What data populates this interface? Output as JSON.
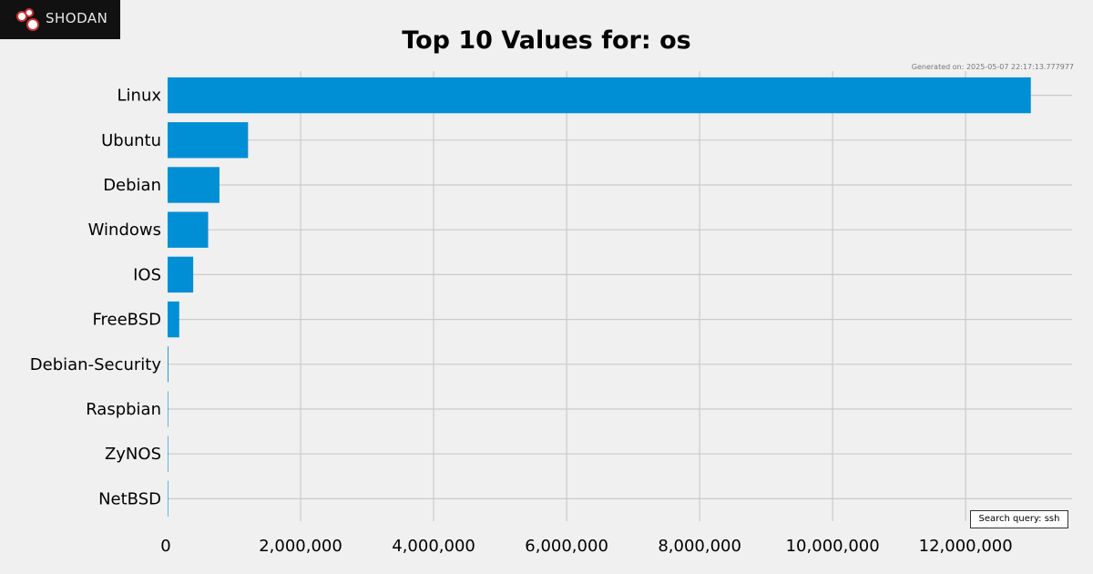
{
  "brand": {
    "logo_text": "SHODAN",
    "logo_icon": "shodan-logo-icon",
    "background": "#111111"
  },
  "generated_text": "Generated on: 2025-05-07 22:17:13.777977",
  "search_query": "Search query: ssh",
  "colors": {
    "bar": "#008fd5",
    "background": "#f0f0f0",
    "grid": "#cbcbcb"
  },
  "chart_data": {
    "type": "bar",
    "orientation": "horizontal",
    "title": "Top 10 Values for: os",
    "xlabel": "",
    "ylabel": "",
    "categories": [
      "Linux",
      "Ubuntu",
      "Debian",
      "Windows",
      "IOS",
      "FreeBSD",
      "Debian-Security",
      "Raspbian",
      "ZyNOS",
      "NetBSD"
    ],
    "values": [
      12980000,
      1210000,
      780000,
      610000,
      385000,
      175000,
      12000,
      3000,
      2000,
      1000
    ],
    "xlim": [
      0,
      13600000
    ],
    "ticks": [
      0,
      2000000,
      4000000,
      6000000,
      8000000,
      10000000,
      12000000
    ],
    "tick_labels": [
      "0",
      "2,000,000",
      "4,000,000",
      "6,000,000",
      "8,000,000",
      "10,000,000",
      "12,000,000"
    ],
    "grid": true,
    "legend": "bottom-right"
  }
}
